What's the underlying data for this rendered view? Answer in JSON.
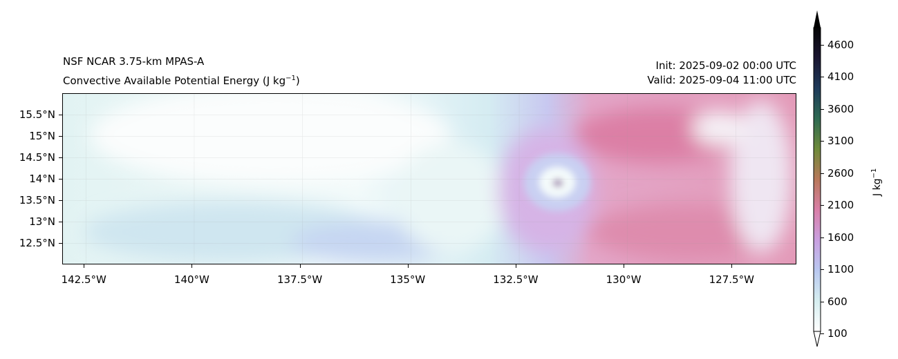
{
  "title": {
    "left_line1": "NSF NCAR 3.75-km MPAS-A",
    "left_line2": "Convective Available Potential Energy (J kg",
    "left_line2_sup": "−1",
    "left_line2_end": ")",
    "init": "Init: 2025-09-02 00:00 UTC",
    "valid": "Valid: 2025-09-04 11:00 UTC"
  },
  "chart_data": {
    "type": "heatmap",
    "variable": "Convective Available Potential Energy",
    "units": "J kg^-1",
    "x_ticks": [
      "142.5°W",
      "140°W",
      "137.5°W",
      "135°W",
      "132.5°W",
      "130°W",
      "127.5°W"
    ],
    "x_tick_values": [
      -142.5,
      -140,
      -137.5,
      -135,
      -132.5,
      -130,
      -127.5
    ],
    "xlim": [
      -143.0,
      -126.0
    ],
    "y_ticks": [
      "15.5°N",
      "15°N",
      "14.5°N",
      "14°N",
      "13.5°N",
      "13°N",
      "12.5°N"
    ],
    "y_tick_values": [
      15.5,
      15,
      14.5,
      14,
      13.5,
      13,
      12.5
    ],
    "ylim": [
      12.0,
      16.0
    ],
    "grid": true,
    "features": [
      {
        "name": "tropical cyclone eye",
        "lon": -131.6,
        "lat": 13.95
      },
      {
        "name": "high CAPE region (~1500-2300)",
        "lon_range": [
          -132.5,
          -126
        ],
        "lat_range": [
          12,
          16
        ]
      },
      {
        "name": "low CAPE region (~100-900)",
        "lon_range": [
          -143,
          -133
        ],
        "lat_range": [
          12,
          16
        ]
      }
    ],
    "colorbar": {
      "label": "J kg",
      "label_sup": "−1",
      "ticks": [
        100,
        600,
        1100,
        1600,
        2100,
        2600,
        3100,
        3600,
        4100,
        4600
      ],
      "extend": "both",
      "colors": [
        "#ffffff",
        "#d6eef0",
        "#b9c8f0",
        "#c9a0e0",
        "#d97fa8",
        "#b8785a",
        "#6e8a3a",
        "#2e6a52",
        "#1e3a5a",
        "#1a1530",
        "#000000"
      ]
    }
  }
}
